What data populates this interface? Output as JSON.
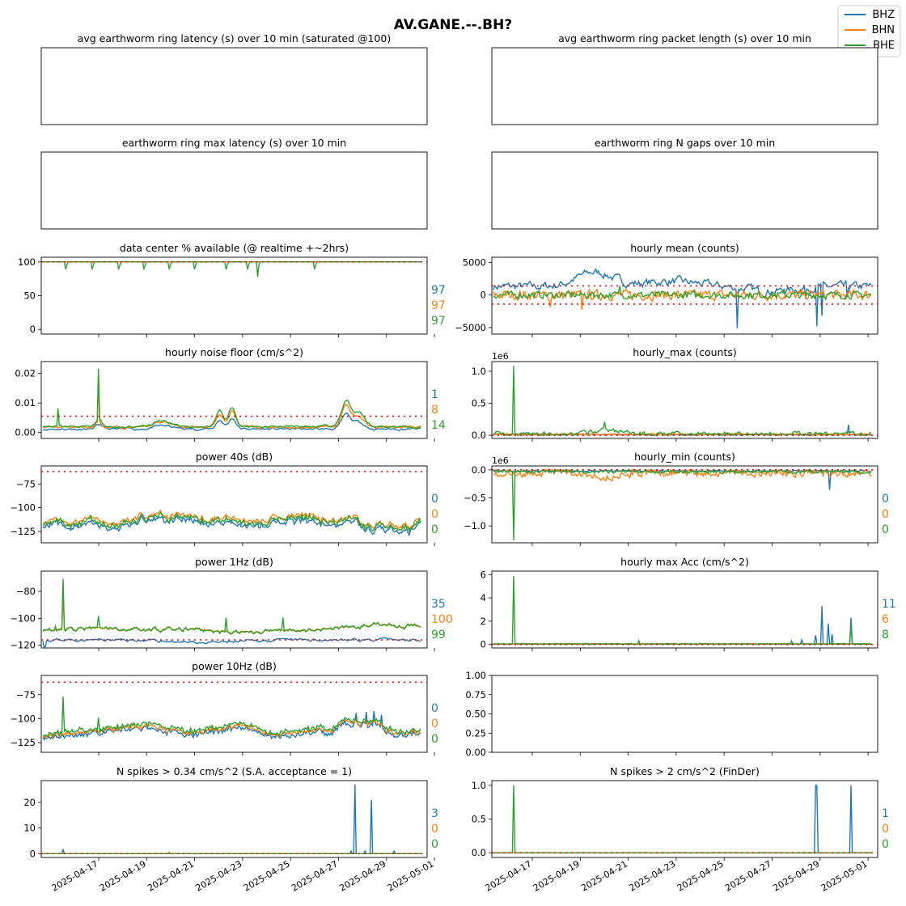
{
  "figure": {
    "title": "AV.GANE.--.BH?",
    "legend": {
      "placement": "top-right",
      "entries": [
        {
          "name": "BHZ",
          "color": "#1f77b4"
        },
        {
          "name": "BHN",
          "color": "#ff7f0e"
        },
        {
          "name": "BHE",
          "color": "#2ca02c"
        }
      ]
    },
    "x_tick_labels": [
      "2025-04-17",
      "2025-04-19",
      "2025-04-21",
      "2025-04-23",
      "2025-04-25",
      "2025-04-27",
      "2025-04-29",
      "2025-05-01"
    ],
    "colors": {
      "BHZ": "#1f77b4",
      "BHN": "#ff7f0e",
      "BHE": "#2ca02c",
      "threshold": "#ff0000"
    }
  },
  "chart_data": [
    {
      "id": "p1",
      "type": "line",
      "title": "avg earthworm ring latency (s)   over 10 min (saturated @100)",
      "empty": true,
      "yticks": [],
      "ylim": [
        0,
        1
      ],
      "stats": []
    },
    {
      "id": "p2",
      "type": "line",
      "title": "avg earthworm ring packet length (s)   over 10 min",
      "empty": true,
      "yticks": [],
      "ylim": [
        0,
        1
      ],
      "stats": []
    },
    {
      "id": "p3",
      "type": "line",
      "title": "earthworm ring max latency (s)   over 10 min",
      "empty": true,
      "yticks": [],
      "ylim": [
        0,
        1
      ],
      "stats": []
    },
    {
      "id": "p4",
      "type": "line",
      "title": "earthworm ring N gaps   over 10 min",
      "empty": true,
      "yticks": [],
      "ylim": [
        0,
        1
      ],
      "stats": []
    },
    {
      "id": "p5",
      "type": "line",
      "title": "data center % available (@ realtime +~2hrs)",
      "ylim": [
        -7,
        107
      ],
      "yticks": [
        0,
        50,
        100
      ],
      "ytick_labels": [
        "0",
        "50",
        "100"
      ],
      "threshold": [
        100
      ],
      "stats": [
        "97",
        "97",
        "97"
      ]
    },
    {
      "id": "p6",
      "type": "line",
      "title": "hourly mean (counts)",
      "ylim": [
        -6000,
        5800
      ],
      "yticks": [
        -5000,
        0,
        5000
      ],
      "ytick_labels": [
        "−5000",
        "0",
        "5000"
      ],
      "threshold": [
        1400,
        -1400
      ],
      "stats": []
    },
    {
      "id": "p7",
      "type": "line",
      "title": "hourly noise floor (cm/s^2)",
      "ylim": [
        -0.002,
        0.024
      ],
      "yticks": [
        0,
        0.01,
        0.02
      ],
      "ytick_labels": [
        "0.00",
        "0.01",
        "0.02"
      ],
      "threshold": [
        0.0055
      ],
      "stats": [
        "1",
        "8",
        "14"
      ]
    },
    {
      "id": "p8",
      "type": "line",
      "title": "hourly_max (counts)",
      "offset_label": "1e6",
      "ylim": [
        -0.05,
        1.15
      ],
      "yticks": [
        0,
        0.5,
        1.0
      ],
      "ytick_labels": [
        "0.0",
        "0.5",
        "1.0"
      ],
      "threshold": [
        0
      ],
      "stats": []
    },
    {
      "id": "p9",
      "type": "line",
      "title": "power 40s (dB)",
      "ylim": [
        -137,
        -56
      ],
      "yticks": [
        -75,
        -100,
        -125
      ],
      "ytick_labels": [
        "−75",
        "−100",
        "−125"
      ],
      "threshold": [
        -62
      ],
      "stats": [
        "0",
        "0",
        "0"
      ]
    },
    {
      "id": "p10",
      "type": "line",
      "title": "hourly_min (counts)",
      "offset_label": "1e6",
      "ylim": [
        -1.3,
        0.07
      ],
      "yticks": [
        0,
        -0.5,
        -1.0
      ],
      "ytick_labels": [
        "0.0",
        "−0.5",
        "−1.0"
      ],
      "threshold": [
        0
      ],
      "stats": [
        "0",
        "0",
        "0"
      ]
    },
    {
      "id": "p11",
      "type": "line",
      "title": "power 1Hz (dB)",
      "ylim": [
        -122,
        -65
      ],
      "yticks": [
        -80,
        -100,
        -120
      ],
      "ytick_labels": [
        "−80",
        "−100",
        "−120"
      ],
      "threshold": [
        -116
      ],
      "stats": [
        "35",
        "100",
        "99"
      ]
    },
    {
      "id": "p12",
      "type": "line",
      "title": "hourly max Acc (cm/s^2)",
      "ylim": [
        -0.3,
        6.3
      ],
      "yticks": [
        0,
        2,
        4,
        6
      ],
      "ytick_labels": [
        "0",
        "2",
        "4",
        "6"
      ],
      "threshold": [
        0
      ],
      "stats": [
        "11",
        "6",
        "8"
      ]
    },
    {
      "id": "p13",
      "type": "line",
      "title": "power 10Hz (dB)",
      "ylim": [
        -135,
        -55
      ],
      "yticks": [
        -75,
        -100,
        -125
      ],
      "ytick_labels": [
        "−75",
        "−100",
        "−125"
      ],
      "threshold": [
        -62
      ],
      "stats": [
        "0",
        "0",
        "0"
      ]
    },
    {
      "id": "p14",
      "type": "line",
      "title": "",
      "empty": true,
      "ylim": [
        0,
        1
      ],
      "yticks": [
        0,
        0.25,
        0.5,
        0.75,
        1.0
      ],
      "ytick_labels": [
        "0.00",
        "0.25",
        "0.50",
        "0.75",
        "1.00"
      ],
      "stats": []
    },
    {
      "id": "p15",
      "type": "line",
      "title": "N spikes > 0.34 cm/s^2 (S.A. acceptance = 1)",
      "ylim": [
        -1.5,
        28.5
      ],
      "yticks": [
        0,
        10,
        20
      ],
      "ytick_labels": [
        "0",
        "10",
        "20"
      ],
      "threshold": [
        0
      ],
      "stats": [
        "3",
        "0",
        "0"
      ]
    },
    {
      "id": "p16",
      "type": "line",
      "title": "N spikes > 2 cm/s^2 (FinDer)",
      "ylim": [
        -0.07,
        1.07
      ],
      "yticks": [
        0,
        0.5,
        1.0
      ],
      "ytick_labels": [
        "0.0",
        "0.5",
        "1.0"
      ],
      "threshold": [
        0
      ],
      "stats": [
        "1",
        "0",
        "0"
      ]
    }
  ]
}
